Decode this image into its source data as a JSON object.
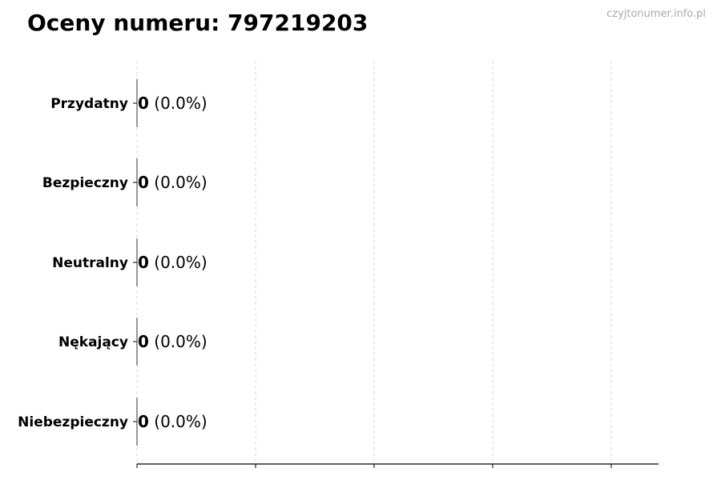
{
  "title": "Oceny numeru: 797219203",
  "watermark": "czyjtonumer.info.pl",
  "chart_data": {
    "type": "bar",
    "orientation": "horizontal",
    "title": "Oceny numeru: 797219203",
    "categories": [
      "Przydatny",
      "Bezpieczny",
      "Neutralny",
      "Nękający",
      "Niebezpieczny"
    ],
    "values": [
      0,
      0,
      0,
      0,
      0
    ],
    "labels": [
      {
        "count": "0",
        "percent": "(0.0%)"
      },
      {
        "count": "0",
        "percent": "(0.0%)"
      },
      {
        "count": "0",
        "percent": "(0.0%)"
      },
      {
        "count": "0",
        "percent": "(0.0%)"
      },
      {
        "count": "0",
        "percent": "(0.0%)"
      }
    ],
    "xlim": [
      0,
      4.4
    ],
    "x_ticks": [
      0,
      1,
      2,
      3,
      4
    ],
    "x_tick_labels_shown": false,
    "grid": "vertical dashed",
    "bar_color": "#000000",
    "grid_color": "#dddddd"
  }
}
